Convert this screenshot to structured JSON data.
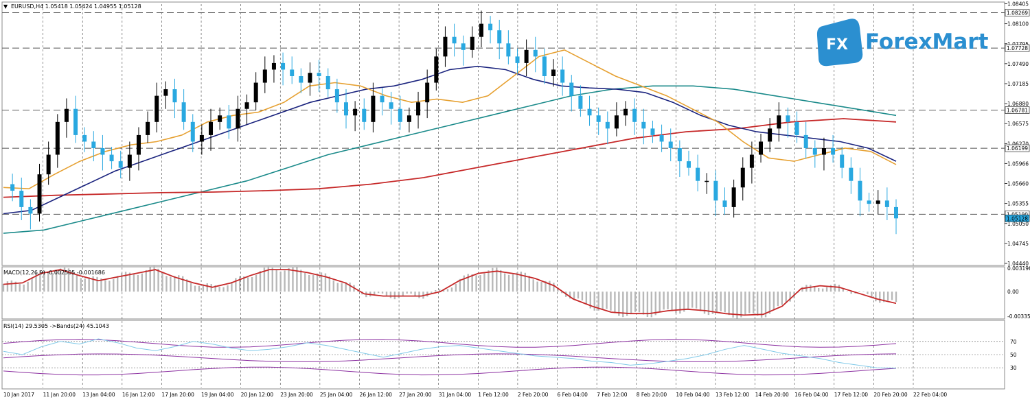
{
  "header": {
    "symbol_line": "EURUSD,H4  1.05418 1.05424 1.04955 1.05128"
  },
  "brand": {
    "name": "ForexMart",
    "mark": "FX"
  },
  "colors": {
    "background": "#ffffff",
    "bull": "#000000",
    "bear": "#29a8e0",
    "ma_fast": "#e6a030",
    "ma_mid": "#1a237e",
    "ma_slow": "#1a8a8a",
    "ma_long": "#c62828",
    "macd_hist": "#b8b8b8",
    "macd_signal": "#c62828",
    "rsi_line": "#7fc9e8",
    "rsi_bands": "#8b2fa0",
    "hline": "#555555",
    "brand": "#2b8fd0"
  },
  "chart_data": [
    {
      "type": "candlestick",
      "name": "price",
      "title": "EURUSD,H4",
      "ohlc_readout": [
        1.05418,
        1.05424,
        1.04955,
        1.05128
      ],
      "ylim": [
        1.0444,
        1.084
      ],
      "y_ticks": [
        "1.08405",
        "1.08100",
        "1.07795",
        "1.07490",
        "1.07185",
        "1.06880",
        "1.06575",
        "1.06270",
        "1.05966",
        "1.05660",
        "1.05355",
        "1.05050",
        "1.04745",
        "1.04440"
      ],
      "price_labels": [
        "1.08269",
        "1.07728",
        "1.06781",
        "1.06199",
        "1.05190",
        "1.05128"
      ],
      "horizontal_lines": [
        1.08269,
        1.07728,
        1.06781,
        1.06199,
        1.0519
      ],
      "x_labels": [
        "10 Jan 2017",
        "11 Jan 20:00",
        "13 Jan 04:00",
        "16 Jan 12:00",
        "17 Jan 20:00",
        "19 Jan 04:00",
        "20 Jan 12:00",
        "23 Jan 20:00",
        "25 Jan 04:00",
        "26 Jan 12:00",
        "27 Jan 20:00",
        "31 Jan 04:00",
        "1 Feb 12:00",
        "2 Feb 20:00",
        "6 Feb 04:00",
        "7 Feb 12:00",
        "8 Feb 20:00",
        "10 Feb 04:00",
        "13 Feb 12:00",
        "14 Feb 20:00",
        "16 Feb 04:00",
        "17 Feb 12:00",
        "20 Feb 20:00",
        "22 Feb 04:00"
      ],
      "close_path": [
        1.0565,
        1.0555,
        1.053,
        1.052,
        1.058,
        1.061,
        1.066,
        1.068,
        1.064,
        1.063,
        1.062,
        1.061,
        1.06,
        1.059,
        1.061,
        1.064,
        1.066,
        1.07,
        1.071,
        1.069,
        1.066,
        1.063,
        1.064,
        1.066,
        1.067,
        1.065,
        1.068,
        1.069,
        1.072,
        1.074,
        1.075,
        1.074,
        1.073,
        1.072,
        1.0735,
        1.073,
        1.071,
        1.069,
        1.067,
        1.068,
        1.066,
        1.07,
        1.069,
        1.068,
        1.066,
        1.067,
        1.069,
        1.072,
        1.076,
        1.079,
        1.078,
        1.077,
        1.079,
        1.081,
        1.08,
        1.078,
        1.076,
        1.075,
        1.077,
        1.076,
        1.073,
        1.074,
        1.072,
        1.07,
        1.068,
        1.067,
        1.066,
        1.065,
        1.067,
        1.068,
        1.066,
        1.065,
        1.064,
        1.063,
        1.062,
        1.06,
        1.059,
        1.057,
        1.057,
        1.054,
        1.053,
        1.056,
        1.059,
        1.061,
        1.063,
        1.065,
        1.067,
        1.066,
        1.064,
        1.062,
        1.061,
        1.062,
        1.061,
        1.059,
        1.057,
        1.054,
        1.0535,
        1.054,
        1.053,
        1.05128
      ],
      "moving_averages": {
        "fast": [
          1.056,
          1.0558,
          1.058,
          1.06,
          1.0615,
          1.0625,
          1.063,
          1.064,
          1.066,
          1.067,
          1.0675,
          1.069,
          1.0715,
          1.072,
          1.0715,
          1.07,
          1.069,
          1.0695,
          1.069,
          1.07,
          1.073,
          1.076,
          1.077,
          1.075,
          1.073,
          1.0715,
          1.07,
          1.068,
          1.066,
          1.063,
          1.0605,
          1.06,
          1.061,
          1.062,
          1.0615,
          1.0595
        ],
        "mid": [
          1.052,
          1.0525,
          1.0545,
          1.0565,
          1.0585,
          1.06,
          1.0615,
          1.063,
          1.0645,
          1.066,
          1.0675,
          1.069,
          1.07,
          1.071,
          1.0715,
          1.0725,
          1.074,
          1.0745,
          1.074,
          1.0725,
          1.0715,
          1.0712,
          1.071,
          1.0705,
          1.069,
          1.067,
          1.0655,
          1.0645,
          1.064,
          1.0635,
          1.063,
          1.062,
          1.06
        ],
        "slow": [
          1.049,
          1.0495,
          1.051,
          1.0525,
          1.054,
          1.0555,
          1.057,
          1.059,
          1.061,
          1.0625,
          1.064,
          1.0655,
          1.067,
          1.0685,
          1.07,
          1.071,
          1.0715,
          1.0715,
          1.071,
          1.07,
          1.069,
          1.068,
          1.067
        ],
        "long": [
          1.0545,
          1.0548,
          1.055,
          1.0552,
          1.0553,
          1.0555,
          1.0558,
          1.0565,
          1.0575,
          1.059,
          1.0605,
          1.062,
          1.0635,
          1.0645,
          1.065,
          1.066,
          1.0665,
          1.066
        ]
      }
    },
    {
      "type": "histogram+line",
      "name": "MACD",
      "label": "MACD(12,26,9) -0.002505 -0.001686",
      "ylim": [
        -0.00354,
        0.0032
      ],
      "y_ticks": [
        "0.003196",
        "0.00",
        "-0.00335"
      ],
      "signal": [
        0.001,
        0.0012,
        0.0025,
        0.003,
        0.0022,
        0.0015,
        0.002,
        0.0025,
        0.003,
        0.002,
        0.0012,
        0.0006,
        0.0012,
        0.0022,
        0.003,
        0.003,
        0.0026,
        0.002,
        0.0012,
        -0.0003,
        -0.0006,
        -0.0006,
        -0.0006,
        0.0,
        0.0015,
        0.0025,
        0.0028,
        0.0024,
        0.0018,
        0.0008,
        -0.001,
        -0.002,
        -0.0028,
        -0.003,
        -0.003,
        -0.0026,
        -0.0024,
        -0.0026,
        -0.003,
        -0.0032,
        -0.0031,
        -0.002,
        0.0004,
        0.0008,
        0.0006,
        -0.0002,
        -0.001,
        -0.0016
      ]
    },
    {
      "type": "line",
      "name": "RSI",
      "label": "RSI(14) 29.5305  ->Bands(24) 45.1043",
      "ylim": [
        0,
        100
      ],
      "y_ticks": [
        "70",
        "50",
        "30"
      ],
      "levels": [
        70,
        50,
        30
      ],
      "rsi": [
        55,
        50,
        62,
        70,
        66,
        74,
        68,
        60,
        56,
        62,
        70,
        66,
        60,
        56,
        58,
        62,
        68,
        64,
        58,
        52,
        46,
        52,
        58,
        62,
        64,
        60,
        56,
        52,
        48,
        46,
        44,
        40,
        38,
        34,
        36,
        40,
        44,
        50,
        58,
        64,
        58,
        52,
        48,
        44,
        38,
        34,
        30,
        29.53
      ],
      "band_mid": 45.1043
    }
  ]
}
